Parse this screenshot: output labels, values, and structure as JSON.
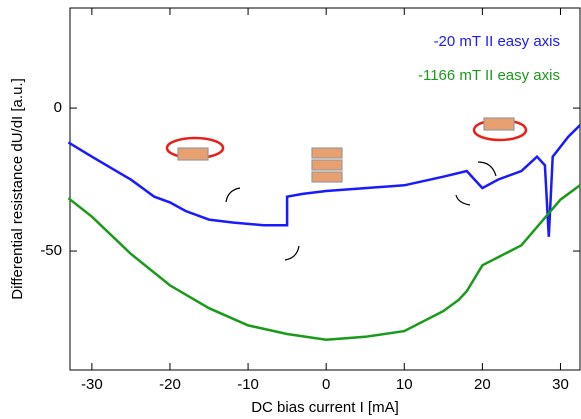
{
  "chart_data": {
    "type": "line",
    "xlabel": "DC bias current I [mA]",
    "ylabel": "Differential resistance dU/dI [a.u.]",
    "xlim": [
      -32.8,
      32.5
    ],
    "ylim": [
      -91.6,
      35
    ],
    "xticks": [
      -30,
      -20,
      -10,
      0,
      10,
      20,
      30
    ],
    "yticks": [
      -50,
      0
    ],
    "series": [
      {
        "name": "-20 mT II easy axis",
        "color": "#1a1aff",
        "x": [
          -33,
          -30,
          -25,
          -22,
          -20,
          -18,
          -15,
          -12,
          -8,
          -5,
          -5,
          -3,
          0,
          5,
          10,
          15,
          18,
          19,
          20,
          22,
          25,
          27,
          28,
          28.5,
          29,
          31,
          32.5
        ],
        "values": [
          -12,
          -17,
          -25,
          -31,
          -33,
          -36,
          -39,
          -40,
          -41,
          -41,
          -31,
          -30,
          -29,
          -28,
          -27,
          -24,
          -22,
          -25,
          -28,
          -25,
          -22,
          -17,
          -20,
          -45,
          -17,
          -10,
          -6
        ]
      },
      {
        "name": "-1166 mT II easy axis",
        "color": "#1a9a1a",
        "x": [
          -33,
          -30,
          -25,
          -20,
          -15,
          -10,
          -5,
          0,
          5,
          10,
          15,
          17,
          18,
          20,
          25,
          30,
          32.5
        ],
        "values": [
          -31.5,
          -38,
          -51,
          -62,
          -70,
          -76,
          -79,
          -81,
          -80,
          -78,
          -71,
          -67,
          -64,
          -55,
          -48,
          -32,
          -27
        ]
      }
    ]
  }
}
